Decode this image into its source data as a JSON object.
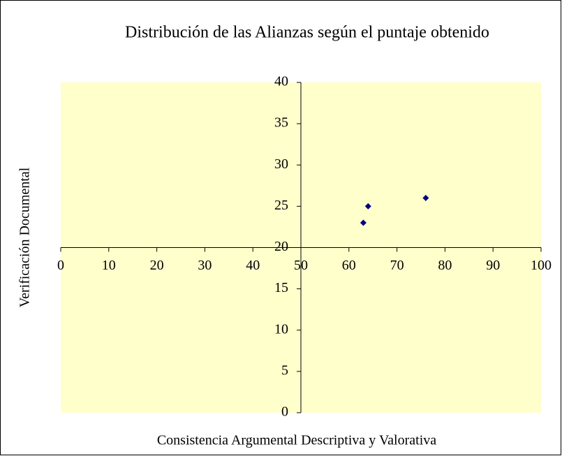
{
  "chart_data": {
    "type": "scatter",
    "title": "Distribución  de las Alianzas  según el puntaje obtenido",
    "xlabel": "Consistencia Argumental Descriptiva y Valorativa",
    "ylabel": "Verificación  Documental",
    "x": [
      63,
      64,
      76
    ],
    "values": [
      23,
      25,
      26
    ],
    "color": "#000080",
    "marker": "diamond",
    "plot_background": "#ffffcc",
    "xlim": [
      0,
      100
    ],
    "xticks": [
      0,
      10,
      20,
      30,
      40,
      50,
      60,
      70,
      80,
      90,
      100
    ],
    "ylim": [
      0,
      40
    ],
    "yticks": [
      0,
      5,
      10,
      15,
      20,
      25,
      30,
      35,
      40
    ],
    "x_axis_crosses_y_at": 20,
    "y_axis_crosses_x_at": 50,
    "grid": false
  }
}
